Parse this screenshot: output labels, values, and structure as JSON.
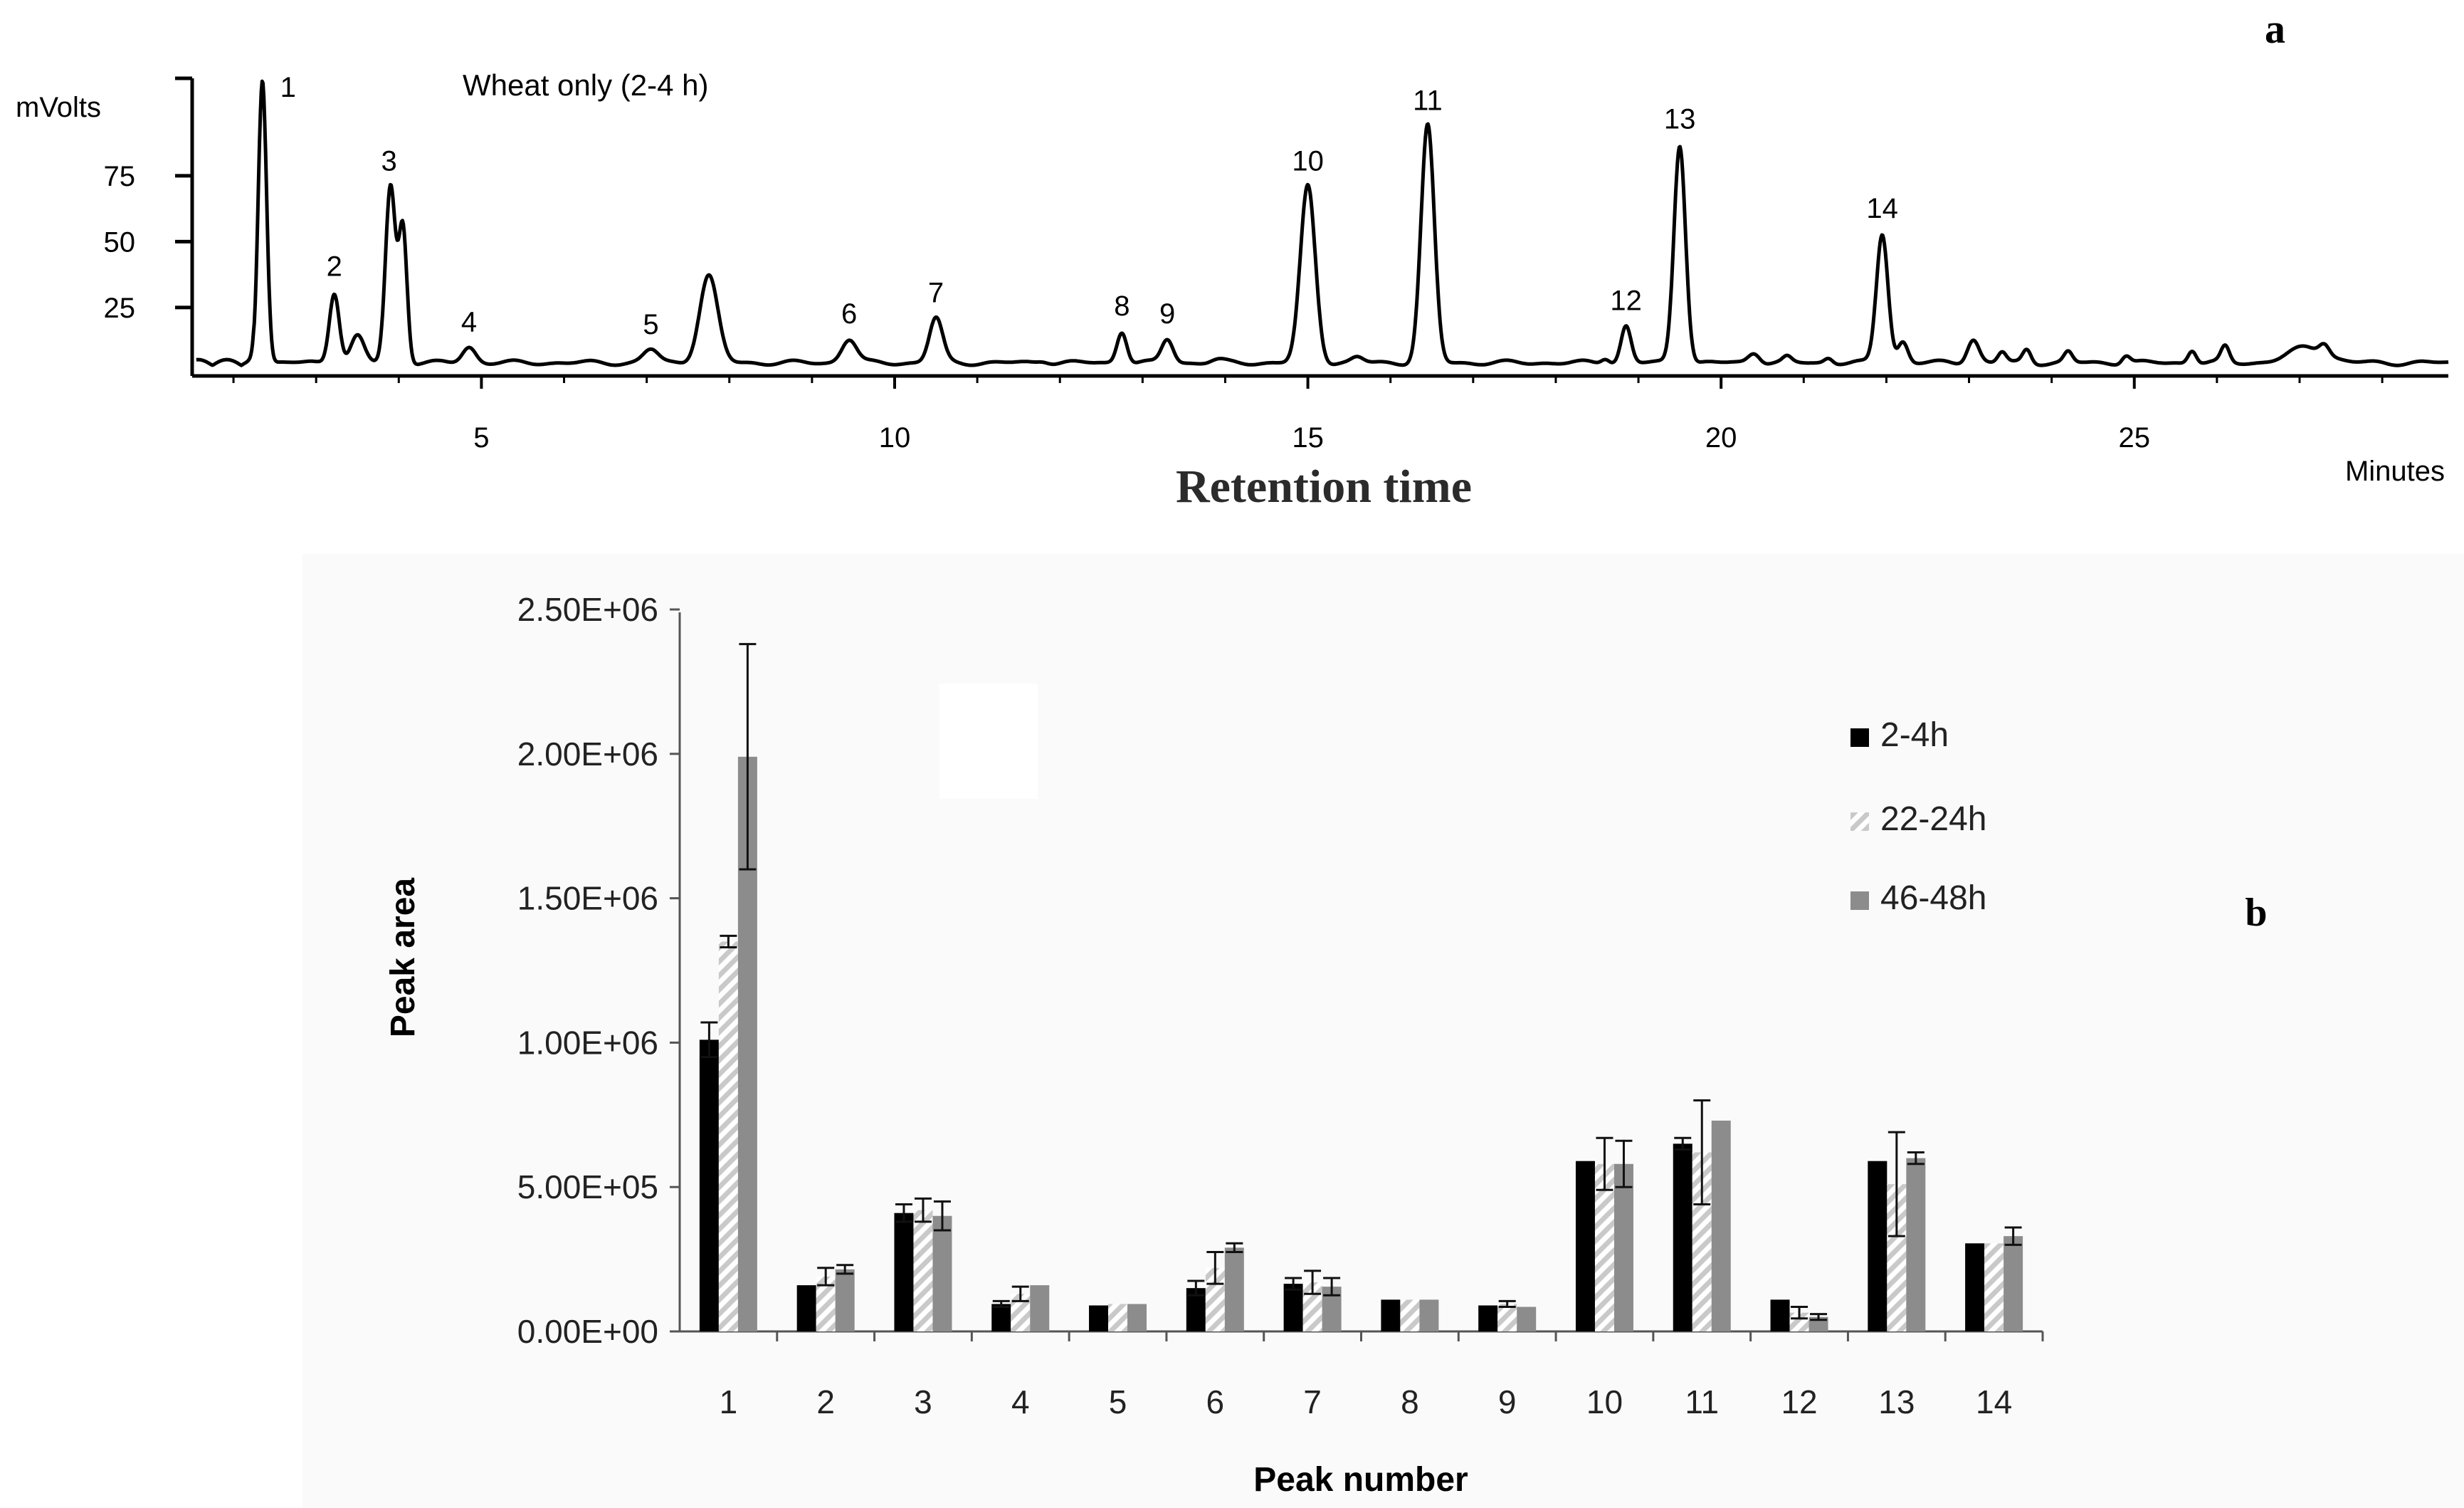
{
  "chart_data": [
    {
      "type": "line",
      "panel_label": "a",
      "title": "Wheat only (2-4 h)",
      "xlabel": "Retention time",
      "x_unit": "Minutes",
      "ylabel": "mVolts",
      "xlim": [
        1.5,
        28.8
      ],
      "ylim": [
        -1,
        112
      ],
      "x_ticks": [
        "5",
        "10",
        "15",
        "20",
        "25"
      ],
      "x_tick_values": [
        5,
        10,
        15,
        20,
        25
      ],
      "y_ticks": [
        "25",
        "50",
        "75"
      ],
      "y_tick_values": [
        25,
        50,
        75
      ],
      "baseline": 4,
      "peaks": [
        {
          "label": "1",
          "x": 2.35,
          "y": 112,
          "w": 0.05
        },
        {
          "label": "2",
          "x": 3.22,
          "y": 31,
          "w": 0.06
        },
        {
          "label": "",
          "x": 3.5,
          "y": 14,
          "w": 0.08
        },
        {
          "label": "3",
          "x": 3.9,
          "y": 71,
          "w": 0.06
        },
        {
          "label": "",
          "x": 4.05,
          "y": 55,
          "w": 0.05
        },
        {
          "label": "4",
          "x": 4.85,
          "y": 10,
          "w": 0.08
        },
        {
          "label": "5",
          "x": 7.05,
          "y": 9,
          "w": 0.09
        },
        {
          "label": "",
          "x": 7.75,
          "y": 37,
          "w": 0.11
        },
        {
          "label": "6",
          "x": 9.45,
          "y": 13,
          "w": 0.09
        },
        {
          "label": "7",
          "x": 10.5,
          "y": 21,
          "w": 0.08
        },
        {
          "label": "",
          "x": 11.8,
          "y": 5,
          "w": 0.07
        },
        {
          "label": "8",
          "x": 12.75,
          "y": 16,
          "w": 0.06
        },
        {
          "label": "9",
          "x": 13.3,
          "y": 13,
          "w": 0.07
        },
        {
          "label": "",
          "x": 13.9,
          "y": 5,
          "w": 0.08
        },
        {
          "label": "10",
          "x": 15.0,
          "y": 71,
          "w": 0.09
        },
        {
          "label": "",
          "x": 15.6,
          "y": 6,
          "w": 0.07
        },
        {
          "label": "11",
          "x": 16.45,
          "y": 94,
          "w": 0.08
        },
        {
          "label": "",
          "x": 18.6,
          "y": 6,
          "w": 0.05
        },
        {
          "label": "12",
          "x": 18.85,
          "y": 18,
          "w": 0.06
        },
        {
          "label": "13",
          "x": 19.5,
          "y": 87,
          "w": 0.07
        },
        {
          "label": "",
          "x": 20.4,
          "y": 8,
          "w": 0.07
        },
        {
          "label": "",
          "x": 20.8,
          "y": 6,
          "w": 0.05
        },
        {
          "label": "",
          "x": 21.3,
          "y": 6,
          "w": 0.05
        },
        {
          "label": "14",
          "x": 21.95,
          "y": 53,
          "w": 0.07
        },
        {
          "label": "",
          "x": 22.2,
          "y": 12,
          "w": 0.06
        },
        {
          "label": "",
          "x": 23.05,
          "y": 13,
          "w": 0.07
        },
        {
          "label": "",
          "x": 23.4,
          "y": 8,
          "w": 0.05
        },
        {
          "label": "",
          "x": 23.7,
          "y": 9,
          "w": 0.05
        },
        {
          "label": "",
          "x": 24.2,
          "y": 8,
          "w": 0.05
        },
        {
          "label": "",
          "x": 24.9,
          "y": 7,
          "w": 0.05
        },
        {
          "label": "",
          "x": 25.7,
          "y": 9,
          "w": 0.05
        },
        {
          "label": "",
          "x": 26.1,
          "y": 10,
          "w": 0.05
        },
        {
          "label": "",
          "x": 27.1,
          "y": 10,
          "w": 0.22
        },
        {
          "label": "",
          "x": 27.3,
          "y": 8,
          "w": 0.06
        }
      ]
    },
    {
      "type": "bar",
      "panel_label": "b",
      "title": "",
      "xlabel": "Peak number",
      "ylabel": "Peak area",
      "ylim": [
        0,
        2500000
      ],
      "y_ticks": [
        "0.00E+00",
        "5.00E+05",
        "1.00E+06",
        "1.50E+06",
        "2.00E+06",
        "2.50E+06"
      ],
      "y_tick_values": [
        0,
        500000,
        1000000,
        1500000,
        2000000,
        2500000
      ],
      "categories": [
        "1",
        "2",
        "3",
        "4",
        "5",
        "6",
        "7",
        "8",
        "9",
        "10",
        "11",
        "12",
        "13",
        "14"
      ],
      "series": [
        {
          "name": "2-4h",
          "color": "#000000",
          "values": [
            1010000,
            160000,
            410000,
            95000,
            90000,
            150000,
            165000,
            110000,
            90000,
            590000,
            650000,
            110000,
            590000,
            305000
          ],
          "errors": [
            60000,
            0,
            30000,
            10000,
            0,
            25000,
            20000,
            0,
            0,
            0,
            20000,
            0,
            0,
            0
          ]
        },
        {
          "name": "22-24h",
          "color": "#c9c9c9",
          "values": [
            1350000,
            190000,
            420000,
            130000,
            95000,
            220000,
            170000,
            110000,
            95000,
            580000,
            620000,
            65000,
            510000,
            305000
          ],
          "errors": [
            20000,
            30000,
            40000,
            25000,
            0,
            55000,
            40000,
            0,
            10000,
            90000,
            180000,
            20000,
            180000,
            0
          ]
        },
        {
          "name": "46-48h",
          "color": "#8c8c8c",
          "values": [
            1990000,
            215000,
            400000,
            160000,
            95000,
            290000,
            155000,
            110000,
            85000,
            580000,
            730000,
            50000,
            600000,
            330000
          ],
          "errors": [
            390000,
            15000,
            50000,
            0,
            0,
            15000,
            30000,
            0,
            0,
            80000,
            0,
            10000,
            20000,
            30000
          ]
        }
      ],
      "legend": "right"
    }
  ]
}
